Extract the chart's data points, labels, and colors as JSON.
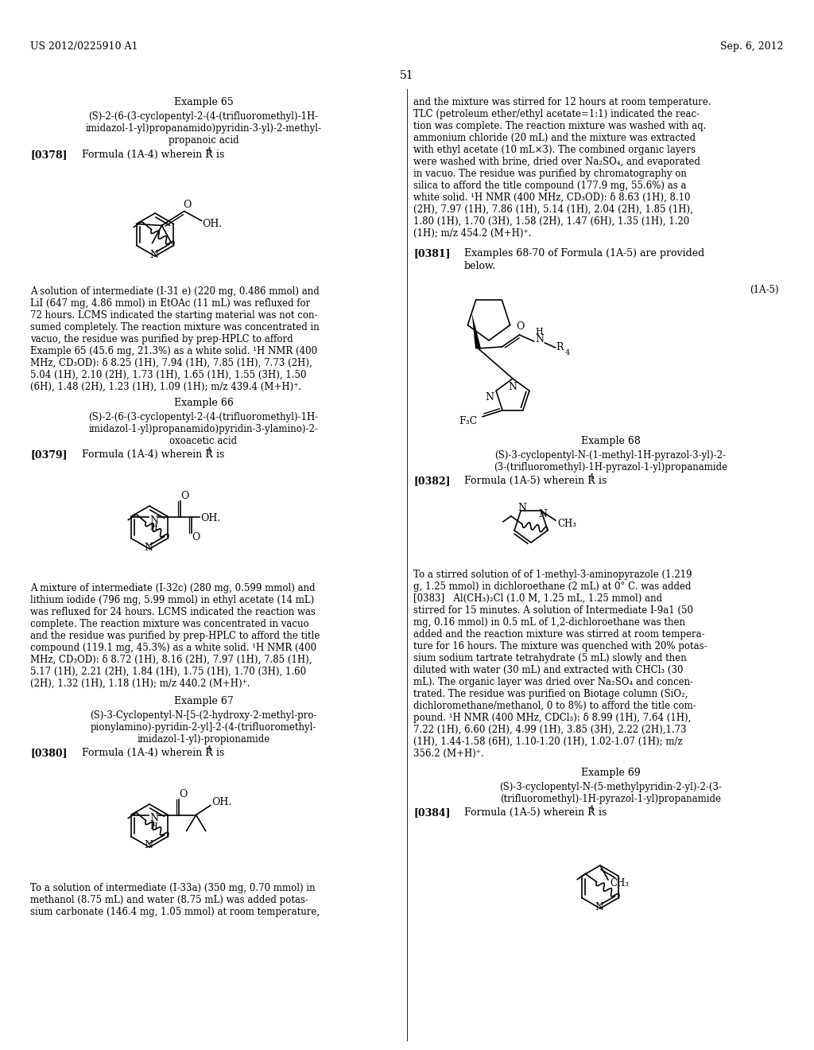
{
  "background_color": "#ffffff",
  "page_number": "51",
  "header_left": "US 2012/0225910 A1",
  "header_right": "Sep. 6, 2012"
}
